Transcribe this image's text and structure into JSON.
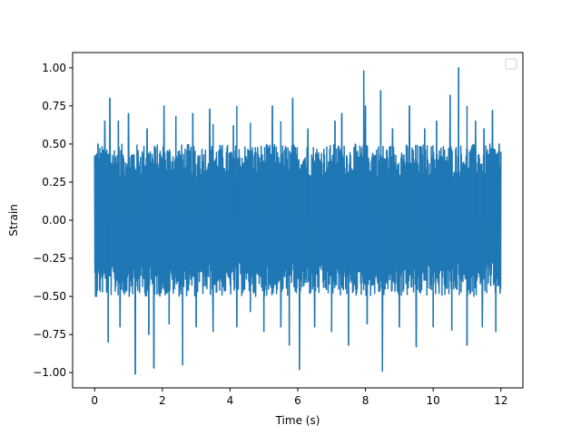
{
  "chart_data": {
    "type": "line",
    "title": "",
    "xlabel": "Time (s)",
    "ylabel": "Strain",
    "xlim": [
      -0.65,
      12.65
    ],
    "ylim": [
      -1.1,
      1.1
    ],
    "xticks": [
      0,
      2,
      4,
      6,
      8,
      10,
      12
    ],
    "xtick_labels": [
      "0",
      "2",
      "4",
      "6",
      "8",
      "10",
      "12"
    ],
    "yticks": [
      -1.0,
      -0.75,
      -0.5,
      -0.25,
      0.0,
      0.25,
      0.5,
      0.75,
      1.0
    ],
    "ytick_labels": [
      "−1.00",
      "−0.75",
      "−0.50",
      "−0.25",
      "0.00",
      "0.25",
      "0.50",
      "0.75",
      "1.00"
    ],
    "grid": false,
    "legend": {
      "placement": "upper right",
      "entries": []
    },
    "series": [
      {
        "color": "#1f77b4",
        "x_start": 0,
        "x_end": 12,
        "typical_range": [
          -0.5,
          0.5
        ],
        "peaks": [
          {
            "x": 0.1,
            "y": 0.5
          },
          {
            "x": 0.3,
            "y": 0.65
          },
          {
            "x": 0.45,
            "y": 0.8
          },
          {
            "x": 0.7,
            "y": 0.65
          },
          {
            "x": 1.0,
            "y": 0.7
          },
          {
            "x": 1.55,
            "y": 0.6
          },
          {
            "x": 2.05,
            "y": 0.75
          },
          {
            "x": 2.4,
            "y": 0.68
          },
          {
            "x": 2.9,
            "y": 0.7
          },
          {
            "x": 3.4,
            "y": 0.73
          },
          {
            "x": 3.5,
            "y": 0.63
          },
          {
            "x": 4.1,
            "y": 0.62
          },
          {
            "x": 4.2,
            "y": 0.75
          },
          {
            "x": 4.6,
            "y": 0.64
          },
          {
            "x": 5.25,
            "y": 0.75
          },
          {
            "x": 5.5,
            "y": 0.65
          },
          {
            "x": 5.85,
            "y": 0.8
          },
          {
            "x": 6.3,
            "y": 0.6
          },
          {
            "x": 7.1,
            "y": 0.65
          },
          {
            "x": 7.3,
            "y": 0.7
          },
          {
            "x": 7.95,
            "y": 0.98
          },
          {
            "x": 8.0,
            "y": 0.75
          },
          {
            "x": 8.45,
            "y": 0.85
          },
          {
            "x": 8.8,
            "y": 0.6
          },
          {
            "x": 9.3,
            "y": 0.75
          },
          {
            "x": 9.75,
            "y": 0.6
          },
          {
            "x": 10.1,
            "y": 0.65
          },
          {
            "x": 10.5,
            "y": 0.82
          },
          {
            "x": 10.75,
            "y": 1.0
          },
          {
            "x": 11.0,
            "y": 0.75
          },
          {
            "x": 11.25,
            "y": 0.65
          },
          {
            "x": 11.5,
            "y": 0.6
          },
          {
            "x": 11.75,
            "y": 0.72
          },
          {
            "x": 11.95,
            "y": 0.5
          }
        ],
        "troughs": [
          {
            "x": 0.05,
            "y": -0.5
          },
          {
            "x": 0.4,
            "y": -0.8
          },
          {
            "x": 0.75,
            "y": -0.7
          },
          {
            "x": 1.2,
            "y": -1.01
          },
          {
            "x": 1.6,
            "y": -0.75
          },
          {
            "x": 1.75,
            "y": -0.97
          },
          {
            "x": 2.2,
            "y": -0.68
          },
          {
            "x": 2.6,
            "y": -0.95
          },
          {
            "x": 3.0,
            "y": -0.7
          },
          {
            "x": 3.5,
            "y": -0.73
          },
          {
            "x": 4.2,
            "y": -0.7
          },
          {
            "x": 4.6,
            "y": -0.6
          },
          {
            "x": 5.0,
            "y": -0.73
          },
          {
            "x": 5.5,
            "y": -0.7
          },
          {
            "x": 5.75,
            "y": -0.82
          },
          {
            "x": 6.05,
            "y": -0.98
          },
          {
            "x": 6.5,
            "y": -0.7
          },
          {
            "x": 7.0,
            "y": -0.73
          },
          {
            "x": 7.5,
            "y": -0.82
          },
          {
            "x": 8.05,
            "y": -0.68
          },
          {
            "x": 8.5,
            "y": -0.99
          },
          {
            "x": 9.0,
            "y": -0.7
          },
          {
            "x": 9.5,
            "y": -0.83
          },
          {
            "x": 10.0,
            "y": -0.7
          },
          {
            "x": 10.55,
            "y": -0.72
          },
          {
            "x": 11.0,
            "y": -0.82
          },
          {
            "x": 11.45,
            "y": -0.7
          },
          {
            "x": 11.85,
            "y": -0.73
          },
          {
            "x": 11.98,
            "y": -0.45
          }
        ]
      }
    ]
  }
}
